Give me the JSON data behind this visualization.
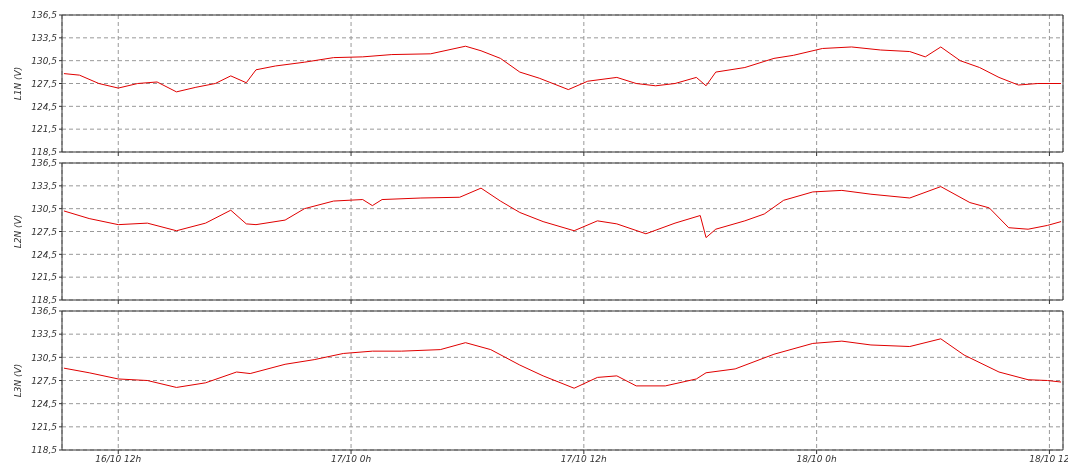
{
  "chart_data": [
    {
      "type": "line",
      "ylabel": "L1N (V)",
      "color": "#e00000",
      "grid": true,
      "tick_labels": "y",
      "xlim": [
        "--10-16T09:06",
        "--10-18T12:42"
      ],
      "xticks": [
        {
          "value": "--10-16T12:00",
          "label": null
        },
        {
          "value": "--10-17T00:00",
          "label": null
        },
        {
          "value": "--10-17T12:00",
          "label": null
        },
        {
          "value": "--10-18T00:00",
          "label": null
        },
        {
          "value": "--10-18T12:00",
          "label": null
        }
      ],
      "ylim": [
        118.5,
        136.5
      ],
      "yticks": [
        {
          "value": 118.5,
          "label": "118,5"
        },
        {
          "value": 121.5,
          "label": "121,5"
        },
        {
          "value": 124.5,
          "label": "124,5"
        },
        {
          "value": 127.5,
          "label": "127,5"
        },
        {
          "value": 130.5,
          "label": "130,5"
        },
        {
          "value": 133.5,
          "label": "133,5"
        },
        {
          "value": 136.5,
          "label": "136,5"
        }
      ],
      "x": [
        "--10-16T09:12",
        "--10-16T10:00",
        "--10-16T11:00",
        "--10-16T12:00",
        "--10-16T13:00",
        "--10-16T14:00",
        "--10-16T15:00",
        "--10-16T16:00",
        "--10-16T17:00",
        "--10-16T17:48",
        "--10-16T18:36",
        "--10-16T19:06",
        "--10-16T20:06",
        "--10-16T21:36",
        "--10-16T23:06",
        "--10-17T00:36",
        "--10-17T02:06",
        "--10-17T04:06",
        "--10-17T05:54",
        "--10-17T06:42",
        "--10-17T07:42",
        "--10-17T08:42",
        "--10-17T09:42",
        "--10-17T11:12",
        "--10-17T12:12",
        "--10-17T13:42",
        "--10-17T14:42",
        "--10-17T15:42",
        "--10-17T16:42",
        "--10-17T17:48",
        "--10-17T18:18",
        "--10-17T18:48",
        "--10-17T20:18",
        "--10-17T21:48",
        "--10-17T22:48",
        "--10-18T00:18",
        "--10-18T01:48",
        "--10-18T03:18",
        "--10-18T04:48",
        "--10-18T05:36",
        "--10-18T06:24",
        "--10-18T07:24",
        "--10-18T08:24",
        "--10-18T09:24",
        "--10-18T10:24",
        "--10-18T11:24",
        "--10-18T12:36"
      ],
      "values": [
        128.8,
        128.6,
        127.5,
        126.9,
        127.5,
        127.7,
        126.4,
        127.0,
        127.5,
        128.5,
        127.6,
        129.3,
        129.8,
        130.3,
        130.9,
        131.0,
        131.3,
        131.4,
        132.4,
        131.8,
        130.8,
        129.0,
        128.2,
        126.7,
        127.8,
        128.3,
        127.5,
        127.2,
        127.5,
        128.3,
        127.2,
        129.0,
        129.6,
        130.8,
        131.2,
        132.1,
        132.3,
        131.9,
        131.7,
        131.0,
        132.3,
        130.5,
        129.6,
        128.3,
        127.3,
        127.5,
        127.5
      ]
    },
    {
      "type": "line",
      "ylabel": "L2N (V)",
      "color": "#e00000",
      "grid": true,
      "tick_labels": "y",
      "xlim": [
        "--10-16T09:06",
        "--10-18T12:42"
      ],
      "xticks": [
        {
          "value": "--10-16T12:00",
          "label": null
        },
        {
          "value": "--10-17T00:00",
          "label": null
        },
        {
          "value": "--10-17T12:00",
          "label": null
        },
        {
          "value": "--10-18T00:00",
          "label": null
        },
        {
          "value": "--10-18T12:00",
          "label": null
        }
      ],
      "ylim": [
        118.5,
        136.5
      ],
      "yticks": [
        {
          "value": 118.5,
          "label": "118,5"
        },
        {
          "value": 121.5,
          "label": "121,5"
        },
        {
          "value": 124.5,
          "label": "124,5"
        },
        {
          "value": 127.5,
          "label": "127,5"
        },
        {
          "value": 130.5,
          "label": "130,5"
        },
        {
          "value": 133.5,
          "label": "133,5"
        },
        {
          "value": 136.5,
          "label": "136,5"
        }
      ],
      "x": [
        "--10-16T09:12",
        "--10-16T10:30",
        "--10-16T12:00",
        "--10-16T13:30",
        "--10-16T15:00",
        "--10-16T16:30",
        "--10-16T17:48",
        "--10-16T18:36",
        "--10-16T19:06",
        "--10-16T20:36",
        "--10-16T21:36",
        "--10-16T23:06",
        "--10-17T00:36",
        "--10-17T01:06",
        "--10-17T01:36",
        "--10-17T03:36",
        "--10-17T05:36",
        "--10-17T06:42",
        "--10-17T07:42",
        "--10-17T08:42",
        "--10-17T09:54",
        "--10-17T11:30",
        "--10-17T12:42",
        "--10-17T13:42",
        "--10-17T15:12",
        "--10-17T16:42",
        "--10-17T18:00",
        "--10-17T18:18",
        "--10-17T18:48",
        "--10-17T20:18",
        "--10-17T21:18",
        "--10-17T22:18",
        "--10-17T23:48",
        "--10-18T01:18",
        "--10-18T02:48",
        "--10-18T04:48",
        "--10-18T06:24",
        "--10-18T07:54",
        "--10-18T08:54",
        "--10-18T09:54",
        "--10-18T10:54",
        "--10-18T11:54",
        "--10-18T12:36"
      ],
      "values": [
        130.2,
        129.2,
        128.4,
        128.6,
        127.6,
        128.6,
        130.3,
        128.5,
        128.4,
        129.0,
        130.5,
        131.5,
        131.7,
        130.9,
        131.7,
        131.9,
        132.0,
        133.2,
        131.5,
        130.0,
        128.8,
        127.6,
        128.9,
        128.5,
        127.2,
        128.6,
        129.6,
        126.7,
        127.8,
        128.9,
        129.8,
        131.6,
        132.7,
        132.9,
        132.4,
        131.9,
        133.4,
        131.3,
        130.6,
        128.0,
        127.8,
        128.3,
        128.8
      ]
    },
    {
      "type": "line",
      "ylabel": "L3N (V)",
      "color": "#e00000",
      "grid": true,
      "xlim": [
        "--10-16T09:06",
        "--10-18T12:42"
      ],
      "xticks": [
        {
          "value": "--10-16T12:00",
          "label": "16/10 12h"
        },
        {
          "value": "--10-17T00:00",
          "label": "17/10 0h"
        },
        {
          "value": "--10-17T12:00",
          "label": "17/10 12h"
        },
        {
          "value": "--10-18T00:00",
          "label": "18/10 0h"
        },
        {
          "value": "--10-18T12:00",
          "label": "18/10 12"
        }
      ],
      "ylim": [
        118.5,
        136.5
      ],
      "yticks": [
        {
          "value": 118.5,
          "label": "118,5"
        },
        {
          "value": 121.5,
          "label": "121,5"
        },
        {
          "value": 124.5,
          "label": "124,5"
        },
        {
          "value": 127.5,
          "label": "127,5"
        },
        {
          "value": 130.5,
          "label": "130,5"
        },
        {
          "value": 133.5,
          "label": "133,5"
        },
        {
          "value": 136.5,
          "label": "136,5"
        }
      ],
      "x": [
        "--10-16T09:12",
        "--10-16T10:30",
        "--10-16T12:00",
        "--10-16T13:30",
        "--10-16T15:00",
        "--10-16T16:30",
        "--10-16T18:06",
        "--10-16T18:48",
        "--10-16T20:36",
        "--10-16T22:06",
        "--10-16T23:36",
        "--10-17T01:06",
        "--10-17T02:36",
        "--10-17T04:36",
        "--10-17T05:54",
        "--10-17T07:12",
        "--10-17T08:42",
        "--10-17T09:54",
        "--10-17T11:30",
        "--10-17T12:42",
        "--10-17T13:42",
        "--10-17T14:42",
        "--10-17T16:12",
        "--10-17T17:48",
        "--10-17T18:18",
        "--10-17T19:48",
        "--10-17T21:48",
        "--10-17T23:48",
        "--10-18T01:18",
        "--10-18T02:48",
        "--10-18T04:48",
        "--10-18T06:24",
        "--10-18T07:36",
        "--10-18T09:24",
        "--10-18T10:54",
        "--10-18T11:54",
        "--10-18T12:36"
      ],
      "values": [
        129.1,
        128.5,
        127.7,
        127.5,
        126.6,
        127.2,
        128.6,
        128.4,
        129.6,
        130.2,
        131.0,
        131.3,
        131.3,
        131.5,
        132.4,
        131.5,
        129.5,
        128.1,
        126.5,
        127.9,
        128.1,
        126.8,
        126.8,
        127.7,
        128.5,
        129.0,
        130.9,
        132.3,
        132.6,
        132.1,
        131.9,
        132.9,
        130.8,
        128.6,
        127.6,
        127.5,
        127.3
      ]
    }
  ]
}
